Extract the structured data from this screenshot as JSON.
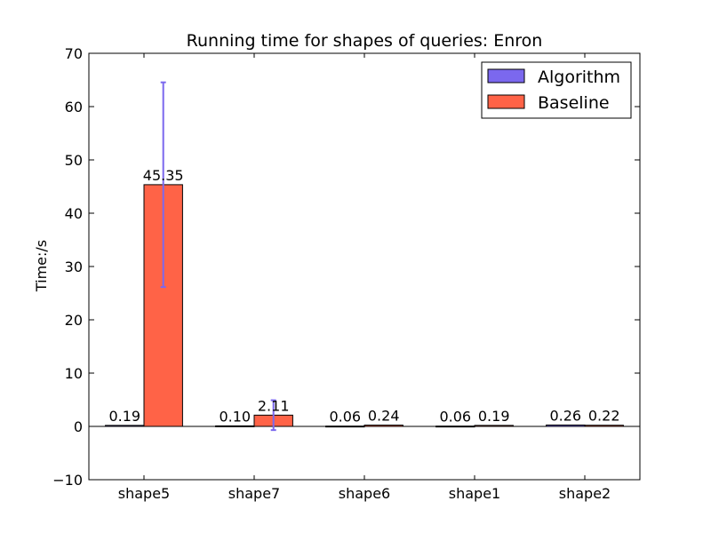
{
  "chart_data": {
    "type": "bar",
    "title": "Running time for shapes of queries: Enron",
    "xlabel": "",
    "ylabel": "Time:/s",
    "ylim": [
      -10,
      70
    ],
    "yticks": [
      -10,
      0,
      10,
      20,
      30,
      40,
      50,
      60,
      70
    ],
    "yticks_labels": [
      "−10",
      "0",
      "10",
      "20",
      "30",
      "40",
      "50",
      "60",
      "70"
    ],
    "grid": false,
    "legend_position": "top-right",
    "categories": [
      "shape5",
      "shape7",
      "shape6",
      "shape1",
      "shape2"
    ],
    "series": [
      {
        "name": "Algorithm",
        "color": "#7b68ee",
        "values": [
          0.19,
          0.1,
          0.06,
          0.06,
          0.26
        ],
        "labels": [
          "0.19",
          "0.10",
          "0.06",
          "0.06",
          "0.26"
        ],
        "error": [
          0.0,
          0.0,
          0.0,
          0.0,
          0.0
        ]
      },
      {
        "name": "Baseline",
        "color": "#ff6347",
        "values": [
          45.35,
          2.11,
          0.24,
          0.19,
          0.22
        ],
        "labels": [
          "45.35",
          "2.11",
          "0.24",
          "0.19",
          "0.22"
        ],
        "error": [
          19.2,
          2.8,
          0.0,
          0.0,
          0.0
        ]
      }
    ],
    "error_bar_color": "#7b68ee"
  }
}
